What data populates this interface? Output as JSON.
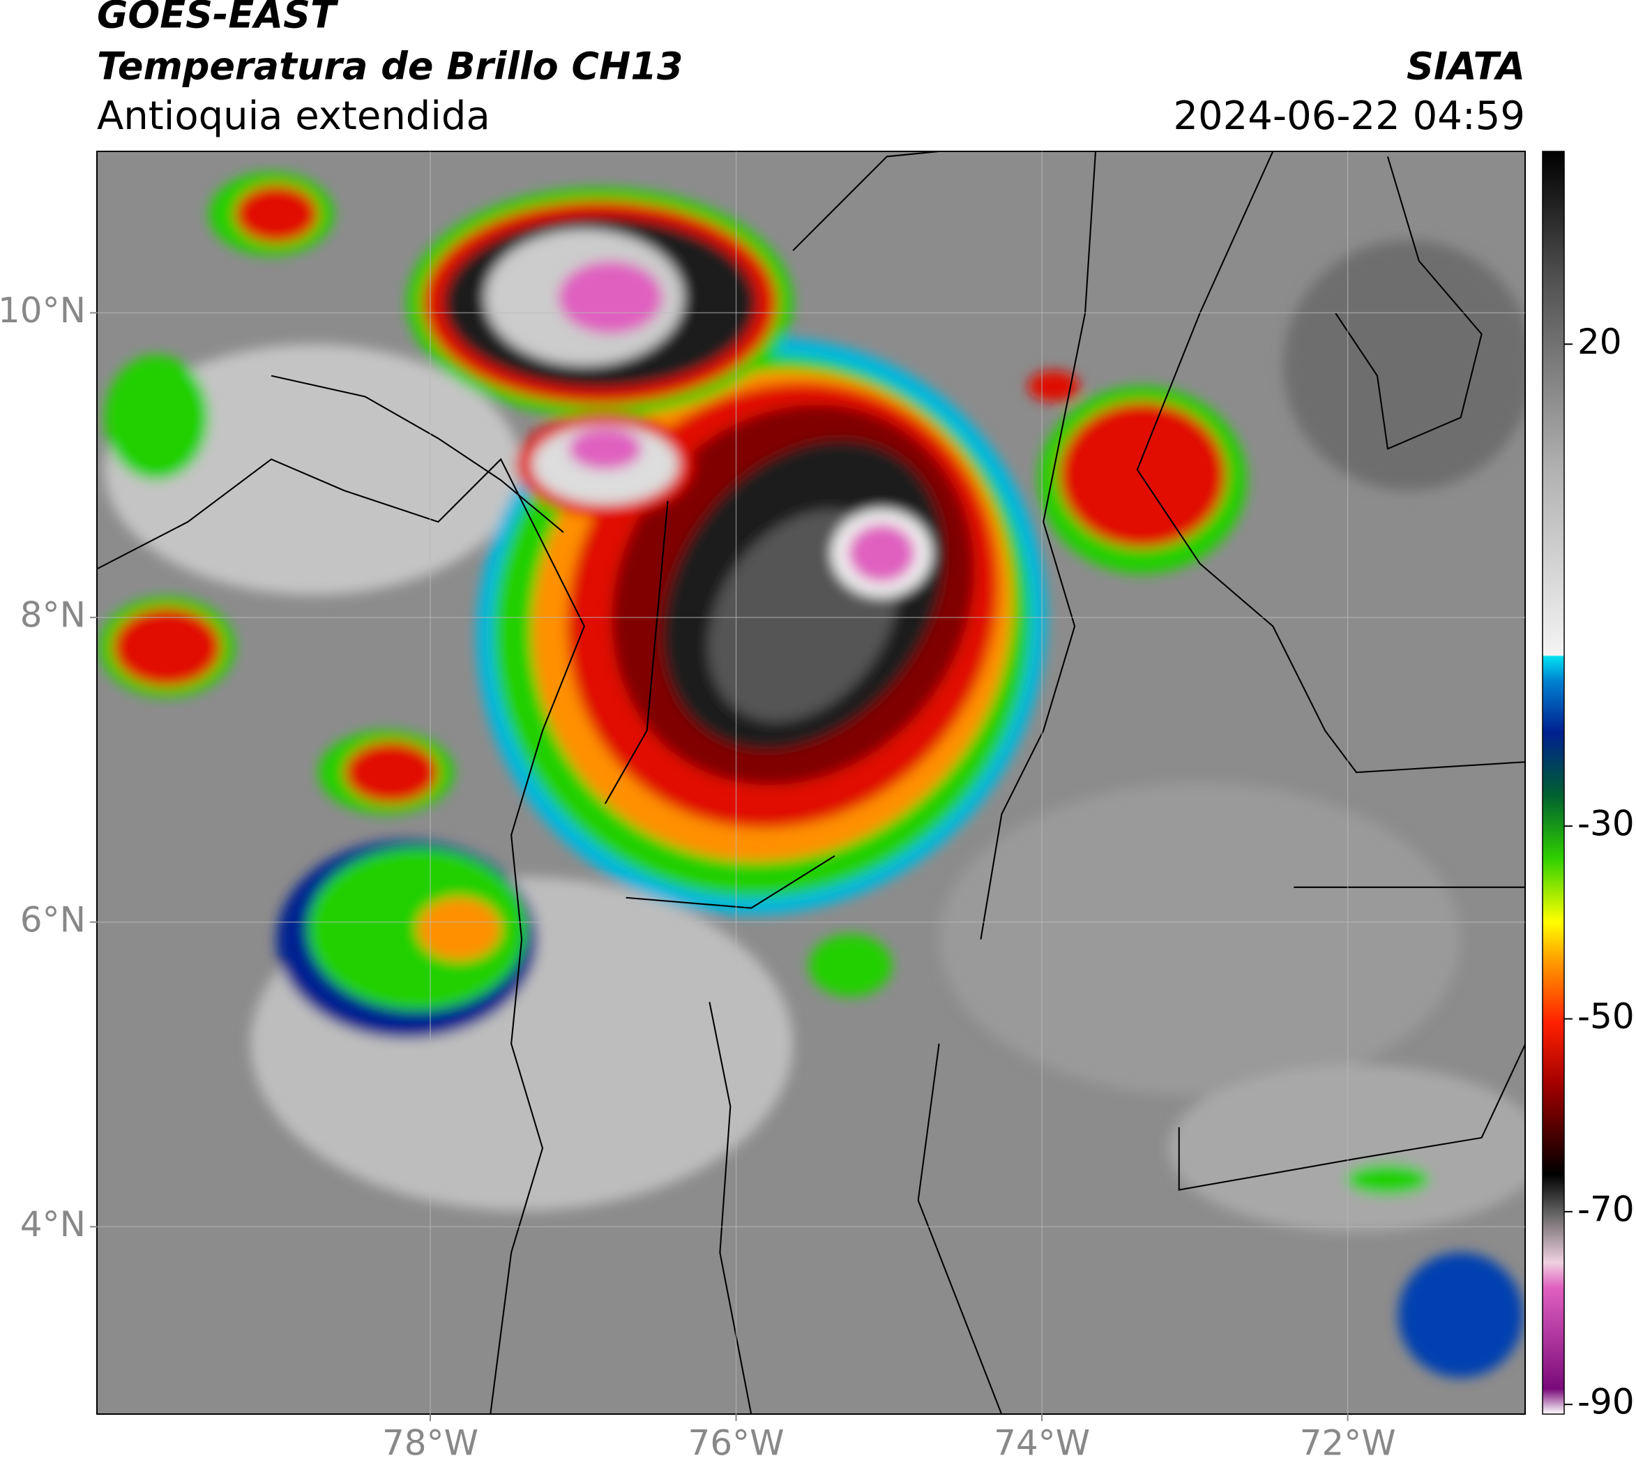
{
  "header": {
    "title": "GOES-EAST",
    "subtitle": "Temperatura de Brillo CH13",
    "region": "Antioquia extendida",
    "source": "SIATA",
    "timestamp": "2024-06-22 04:59"
  },
  "map": {
    "xlim": [
      -80.18,
      -70.84
    ],
    "ylim": [
      2.77,
      11.06
    ],
    "xticks": [
      {
        "value": -78,
        "label": "78°W"
      },
      {
        "value": -76,
        "label": "76°W"
      },
      {
        "value": -74,
        "label": "74°W"
      },
      {
        "value": -72,
        "label": "72°W"
      }
    ],
    "yticks": [
      {
        "value": 10,
        "label": "10°N"
      },
      {
        "value": 8,
        "label": "8°N"
      },
      {
        "value": 6,
        "label": "6°N"
      },
      {
        "value": 4,
        "label": "4°N"
      }
    ],
    "grid": true
  },
  "colorbar": {
    "lim": [
      -91,
      40
    ],
    "ticks": [
      20,
      -30,
      -50,
      -70,
      -90
    ]
  }
}
